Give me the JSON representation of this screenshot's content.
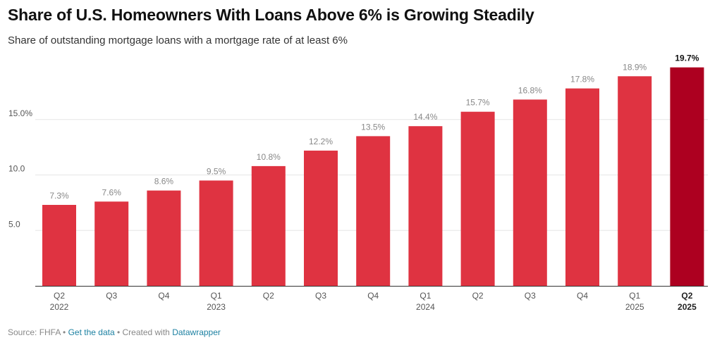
{
  "title": "Share of U.S. Homeowners With Loans Above 6% is Growing Steadily",
  "subtitle": "Share of outstanding mortgage loans with a mortgage rate of at least 6%",
  "footer": {
    "source": "Source: FHFA",
    "sep1": " • ",
    "get_data": "Get the data",
    "sep2": " • Created with ",
    "datawrapper": "Datawrapper"
  },
  "colors": {
    "bar": "#df3341",
    "highlight": "#ad0020",
    "grid": "#e5e5e5",
    "axis": "#333333"
  },
  "chart_data": {
    "type": "bar",
    "categories": [
      [
        "Q2",
        "2022"
      ],
      [
        "Q3",
        ""
      ],
      [
        "Q4",
        ""
      ],
      [
        "Q1",
        "2023"
      ],
      [
        "Q2",
        ""
      ],
      [
        "Q3",
        ""
      ],
      [
        "Q4",
        ""
      ],
      [
        "Q1",
        "2024"
      ],
      [
        "Q2",
        ""
      ],
      [
        "Q3",
        ""
      ],
      [
        "Q4",
        ""
      ],
      [
        "Q1",
        "2025"
      ],
      [
        "Q2",
        "2025"
      ]
    ],
    "values": [
      7.3,
      7.6,
      8.6,
      9.5,
      10.8,
      12.2,
      13.5,
      14.4,
      15.7,
      16.8,
      17.8,
      18.9,
      19.7
    ],
    "value_labels": [
      "7.3%",
      "7.6%",
      "8.6%",
      "9.5%",
      "10.8%",
      "12.2%",
      "13.5%",
      "14.4%",
      "15.7%",
      "16.8%",
      "17.8%",
      "18.9%",
      "19.7%"
    ],
    "highlight_index": 12,
    "y_ticks": [
      5,
      10,
      15
    ],
    "y_tick_labels": [
      "5.0",
      "10.0",
      "15.0%"
    ],
    "ylim": [
      0,
      20.5
    ],
    "grid": true,
    "xlabel": "",
    "ylabel": ""
  }
}
